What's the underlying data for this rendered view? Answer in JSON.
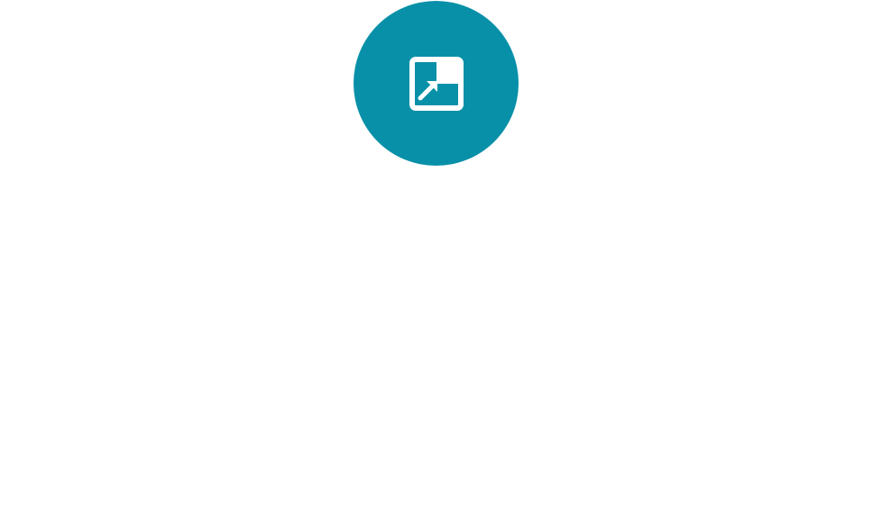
{
  "action_button": {
    "icon": "open-in-new-window-icon",
    "color": "#0890a8",
    "icon_color": "#ffffff",
    "background": "#ffffff"
  }
}
